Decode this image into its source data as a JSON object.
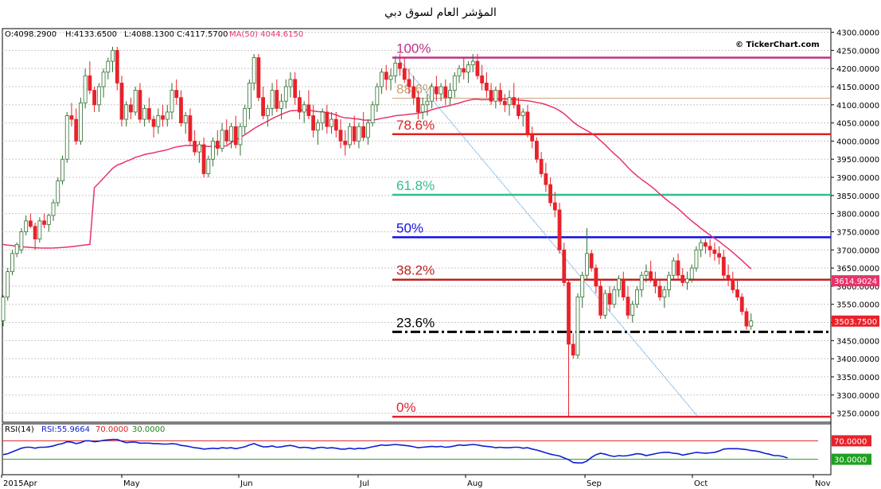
{
  "title": "المؤشر العام لسوق دبي",
  "watermark": "© TickerChart.com",
  "ohlc_header": {
    "open": "O:4098.2900",
    "high": "H:4133.6500",
    "low": "L:4088.1300",
    "close": "C:4117.5700",
    "ma": "MA(50) 4044.6150"
  },
  "rsi_header": {
    "name": "RSI(14)",
    "value": "RSI:55.9664",
    "upper": "70.0000",
    "lower": "30.0000"
  },
  "price_badges": {
    "ma_last": "3614.9024",
    "close_last": "3503.7500"
  },
  "rsi_badges": {
    "upper": "70.0000",
    "lower": "30.0000"
  },
  "colors": {
    "up": "#7fb27f",
    "down": "#e8222a",
    "ma": "#e8336a",
    "rsi": "#1020d0",
    "fib_100": "#c0308a",
    "fib_886": "#c8a070",
    "fib_786": "#e02020",
    "fib_618": "#30c090",
    "fib_50": "#1010e0",
    "fib_382": "#c02020",
    "fib_236": "#000000",
    "fib_0": "#e02030"
  },
  "chart_data": {
    "type": "candlestick",
    "yaxis": {
      "min": 3225,
      "max": 4310,
      "ticks": [
        "3250.0000",
        "3300.0000",
        "3350.0000",
        "3400.0000",
        "3450.0000",
        "3500.0000",
        "3550.0000",
        "3600.0000",
        "3650.0000",
        "3700.0000",
        "3750.0000",
        "3800.0000",
        "3850.0000",
        "3900.0000",
        "3950.0000",
        "4000.0000",
        "4050.0000",
        "4100.0000",
        "4150.0000",
        "4200.0000",
        "4250.0000",
        "4300.0000"
      ]
    },
    "xaxis_labels": [
      "2015Apr",
      "May",
      "Jun",
      "Jul",
      "Aug",
      "Sep",
      "Oct",
      "Nov"
    ],
    "fibonacci": [
      {
        "label": "100%",
        "value": 4230,
        "color_key": "fib_100",
        "style": "solid"
      },
      {
        "label": "88.6%",
        "value": 4118,
        "color_key": "fib_886",
        "style": "solid"
      },
      {
        "label": "78.6%",
        "value": 4019,
        "color_key": "fib_786",
        "style": "solid"
      },
      {
        "label": "61.8%",
        "value": 3852,
        "color_key": "fib_618",
        "style": "solid"
      },
      {
        "label": "50%",
        "value": 3735,
        "color_key": "fib_50",
        "style": "solid"
      },
      {
        "label": "38.2%",
        "value": 3618,
        "color_key": "fib_382",
        "style": "solid"
      },
      {
        "label": "23.6%",
        "value": 3474,
        "color_key": "fib_236",
        "style": "dashdot"
      },
      {
        "label": "0%",
        "value": 3240,
        "color_key": "fib_0",
        "style": "solid"
      }
    ],
    "trendline": {
      "from": {
        "bar": 105,
        "value": 4235
      },
      "to": {
        "bar": 182,
        "value": 3240
      }
    },
    "candles": [
      [
        3505,
        3575,
        3490,
        3570
      ],
      [
        3570,
        3650,
        3560,
        3640
      ],
      [
        3640,
        3700,
        3630,
        3690
      ],
      [
        3690,
        3720,
        3680,
        3715
      ],
      [
        3700,
        3760,
        3690,
        3750
      ],
      [
        3750,
        3795,
        3740,
        3780
      ],
      [
        3780,
        3800,
        3760,
        3765
      ],
      [
        3765,
        3775,
        3700,
        3730
      ],
      [
        3730,
        3790,
        3720,
        3780
      ],
      [
        3780,
        3800,
        3760,
        3770
      ],
      [
        3770,
        3800,
        3750,
        3795
      ],
      [
        3795,
        3840,
        3780,
        3830
      ],
      [
        3830,
        3900,
        3820,
        3890
      ],
      [
        3890,
        3960,
        3880,
        3950
      ],
      [
        3950,
        4080,
        3940,
        4070
      ],
      [
        4070,
        4105,
        4040,
        4060
      ],
      [
        4060,
        4090,
        3990,
        4000
      ],
      [
        4000,
        4120,
        3990,
        4105
      ],
      [
        4105,
        4200,
        4090,
        4180
      ],
      [
        4180,
        4220,
        4130,
        4140
      ],
      [
        4140,
        4150,
        4080,
        4100
      ],
      [
        4100,
        4160,
        4080,
        4150
      ],
      [
        4150,
        4200,
        4120,
        4190
      ],
      [
        4190,
        4230,
        4170,
        4220
      ],
      [
        4220,
        4260,
        4190,
        4250
      ],
      [
        4250,
        4260,
        4140,
        4160
      ],
      [
        4160,
        4180,
        4040,
        4060
      ],
      [
        4060,
        4110,
        4040,
        4100
      ],
      [
        4100,
        4120,
        4060,
        4080
      ],
      [
        4080,
        4150,
        4070,
        4140
      ],
      [
        4140,
        4160,
        4050,
        4060
      ],
      [
        4060,
        4100,
        4040,
        4090
      ],
      [
        4090,
        4120,
        4050,
        4060
      ],
      [
        4060,
        4070,
        4010,
        4040
      ],
      [
        4040,
        4090,
        4020,
        4070
      ],
      [
        4070,
        4100,
        4040,
        4060
      ],
      [
        4060,
        4100,
        4040,
        4080
      ],
      [
        4080,
        4160,
        4060,
        4140
      ],
      [
        4140,
        4170,
        4100,
        4120
      ],
      [
        4120,
        4140,
        4040,
        4050
      ],
      [
        4050,
        4080,
        4020,
        4070
      ],
      [
        4070,
        4090,
        3990,
        4000
      ],
      [
        4000,
        4030,
        3960,
        3970
      ],
      [
        3970,
        4000,
        3940,
        3990
      ],
      [
        3990,
        4010,
        3900,
        3910
      ],
      [
        3910,
        3960,
        3900,
        3950
      ],
      [
        3950,
        4010,
        3930,
        4000
      ],
      [
        4000,
        4030,
        3960,
        3980
      ],
      [
        3980,
        4050,
        3970,
        4030
      ],
      [
        4030,
        4060,
        3990,
        4000
      ],
      [
        4000,
        4050,
        3980,
        4040
      ],
      [
        4040,
        4070,
        3980,
        3990
      ],
      [
        3990,
        4050,
        3960,
        4040
      ],
      [
        4040,
        4100,
        4020,
        4090
      ],
      [
        4090,
        4170,
        4060,
        4160
      ],
      [
        4160,
        4240,
        4140,
        4230
      ],
      [
        4230,
        4240,
        4110,
        4120
      ],
      [
        4120,
        4150,
        4060,
        4070
      ],
      [
        4070,
        4100,
        4040,
        4090
      ],
      [
        4090,
        4160,
        4070,
        4140
      ],
      [
        4140,
        4170,
        4080,
        4090
      ],
      [
        4090,
        4130,
        4060,
        4110
      ],
      [
        4110,
        4170,
        4090,
        4150
      ],
      [
        4150,
        4190,
        4120,
        4170
      ],
      [
        4170,
        4190,
        4100,
        4120
      ],
      [
        4120,
        4140,
        4060,
        4080
      ],
      [
        4080,
        4110,
        4050,
        4100
      ],
      [
        4100,
        4140,
        4060,
        4070
      ],
      [
        4070,
        4100,
        4010,
        4030
      ],
      [
        4030,
        4060,
        3990,
        4050
      ],
      [
        4050,
        4090,
        4030,
        4080
      ],
      [
        4080,
        4100,
        4020,
        4040
      ],
      [
        4040,
        4080,
        4020,
        4060
      ],
      [
        4060,
        4080,
        4010,
        4030
      ],
      [
        4030,
        4060,
        3980,
        4000
      ],
      [
        4000,
        4030,
        3960,
        3990
      ],
      [
        3990,
        4050,
        3980,
        4040
      ],
      [
        4040,
        4070,
        3990,
        4000
      ],
      [
        4000,
        4050,
        3980,
        4040
      ],
      [
        4040,
        4080,
        4000,
        4010
      ],
      [
        4010,
        4060,
        3990,
        4050
      ],
      [
        4050,
        4110,
        4040,
        4100
      ],
      [
        4100,
        4160,
        4080,
        4150
      ],
      [
        4150,
        4200,
        4130,
        4190
      ],
      [
        4190,
        4210,
        4140,
        4170
      ],
      [
        4170,
        4200,
        4140,
        4180
      ],
      [
        4180,
        4230,
        4160,
        4215
      ],
      [
        4215,
        4240,
        4180,
        4200
      ],
      [
        4200,
        4230,
        4160,
        4170
      ],
      [
        4170,
        4200,
        4130,
        4150
      ],
      [
        4150,
        4180,
        4100,
        4120
      ],
      [
        4120,
        4140,
        4060,
        4080
      ],
      [
        4080,
        4120,
        4060,
        4100
      ],
      [
        4100,
        4130,
        4070,
        4110
      ],
      [
        4110,
        4160,
        4090,
        4150
      ],
      [
        4150,
        4180,
        4110,
        4130
      ],
      [
        4130,
        4160,
        4110,
        4150
      ],
      [
        4150,
        4170,
        4100,
        4120
      ],
      [
        4120,
        4160,
        4100,
        4140
      ],
      [
        4140,
        4190,
        4120,
        4180
      ],
      [
        4180,
        4210,
        4160,
        4200
      ],
      [
        4200,
        4230,
        4170,
        4190
      ],
      [
        4190,
        4220,
        4160,
        4210
      ],
      [
        4210,
        4240,
        4190,
        4220
      ],
      [
        4220,
        4240,
        4170,
        4180
      ],
      [
        4180,
        4210,
        4140,
        4160
      ],
      [
        4160,
        4190,
        4120,
        4140
      ],
      [
        4140,
        4160,
        4100,
        4110
      ],
      [
        4110,
        4150,
        4090,
        4140
      ],
      [
        4140,
        4160,
        4100,
        4110
      ],
      [
        4110,
        4130,
        4080,
        4100
      ],
      [
        4100,
        4140,
        4070,
        4120
      ],
      [
        4120,
        4160,
        4090,
        4100
      ],
      [
        4100,
        4120,
        4060,
        4070
      ],
      [
        4070,
        4090,
        4040,
        4080
      ],
      [
        4080,
        4100,
        4010,
        4020
      ],
      [
        4020,
        4040,
        3980,
        4000
      ],
      [
        4000,
        4010,
        3940,
        3950
      ],
      [
        3950,
        3970,
        3900,
        3910
      ],
      [
        3910,
        3940,
        3860,
        3880
      ],
      [
        3880,
        3900,
        3820,
        3830
      ],
      [
        3830,
        3860,
        3790,
        3810
      ],
      [
        3810,
        3830,
        3690,
        3700
      ],
      [
        3700,
        3720,
        3600,
        3610
      ],
      [
        3610,
        3620,
        3240,
        3440
      ],
      [
        3440,
        3470,
        3400,
        3410
      ],
      [
        3410,
        3580,
        3400,
        3570
      ],
      [
        3570,
        3640,
        3540,
        3630
      ],
      [
        3630,
        3760,
        3620,
        3690
      ],
      [
        3690,
        3700,
        3640,
        3650
      ],
      [
        3650,
        3660,
        3580,
        3600
      ],
      [
        3600,
        3620,
        3510,
        3520
      ],
      [
        3520,
        3590,
        3510,
        3580
      ],
      [
        3580,
        3600,
        3530,
        3550
      ],
      [
        3550,
        3600,
        3540,
        3590
      ],
      [
        3590,
        3630,
        3570,
        3620
      ],
      [
        3620,
        3640,
        3560,
        3570
      ],
      [
        3570,
        3600,
        3510,
        3520
      ],
      [
        3520,
        3560,
        3500,
        3550
      ],
      [
        3550,
        3600,
        3540,
        3590
      ],
      [
        3590,
        3640,
        3570,
        3630
      ],
      [
        3630,
        3660,
        3610,
        3640
      ],
      [
        3640,
        3670,
        3610,
        3620
      ],
      [
        3620,
        3640,
        3580,
        3600
      ],
      [
        3600,
        3620,
        3560,
        3570
      ],
      [
        3570,
        3600,
        3540,
        3590
      ],
      [
        3590,
        3640,
        3570,
        3630
      ],
      [
        3630,
        3680,
        3620,
        3670
      ],
      [
        3670,
        3690,
        3620,
        3630
      ],
      [
        3630,
        3650,
        3600,
        3610
      ],
      [
        3610,
        3640,
        3590,
        3620
      ],
      [
        3620,
        3660,
        3610,
        3650
      ],
      [
        3650,
        3710,
        3640,
        3700
      ],
      [
        3700,
        3730,
        3680,
        3720
      ],
      [
        3720,
        3730,
        3690,
        3710
      ],
      [
        3710,
        3730,
        3680,
        3700
      ],
      [
        3700,
        3720,
        3670,
        3690
      ],
      [
        3690,
        3710,
        3660,
        3680
      ],
      [
        3680,
        3700,
        3620,
        3630
      ],
      [
        3630,
        3660,
        3600,
        3620
      ],
      [
        3620,
        3640,
        3580,
        3590
      ],
      [
        3590,
        3620,
        3560,
        3570
      ],
      [
        3570,
        3580,
        3520,
        3530
      ],
      [
        3530,
        3540,
        3480,
        3490
      ],
      [
        3490,
        3525,
        3480,
        3504
      ]
    ],
    "rsi_series": [
      40,
      42,
      46,
      50,
      54,
      56,
      56,
      54,
      56,
      56,
      57,
      59,
      62,
      64,
      68,
      67,
      64,
      66,
      70,
      70,
      68,
      69,
      71,
      72,
      73,
      73,
      69,
      66,
      67,
      67,
      65,
      65,
      65,
      64,
      64,
      63,
      63,
      64,
      63,
      60,
      59,
      57,
      55,
      54,
      52,
      53,
      54,
      53,
      55,
      54,
      55,
      53,
      55,
      57,
      61,
      64,
      60,
      57,
      57,
      59,
      56,
      57,
      59,
      60,
      58,
      55,
      56,
      55,
      53,
      55,
      56,
      54,
      55,
      54,
      52,
      52,
      54,
      52,
      54,
      53,
      55,
      57,
      59,
      61,
      60,
      61,
      62,
      61,
      60,
      59,
      57,
      55,
      56,
      57,
      58,
      57,
      58,
      56,
      57,
      59,
      61,
      60,
      61,
      62,
      61,
      59,
      58,
      57,
      55,
      56,
      55,
      55,
      56,
      56,
      54,
      55,
      52,
      50,
      47,
      44,
      41,
      39,
      37,
      33,
      29,
      23,
      22,
      22,
      26,
      34,
      40,
      43,
      41,
      38,
      36,
      38,
      37,
      38,
      40,
      42,
      41,
      38,
      40,
      42,
      44,
      45,
      45,
      43,
      42,
      39,
      41,
      43,
      45,
      44,
      43,
      44,
      45,
      48,
      52,
      53,
      53,
      53,
      52,
      51,
      49,
      48,
      46,
      43,
      41,
      38,
      38,
      36,
      33
    ]
  }
}
